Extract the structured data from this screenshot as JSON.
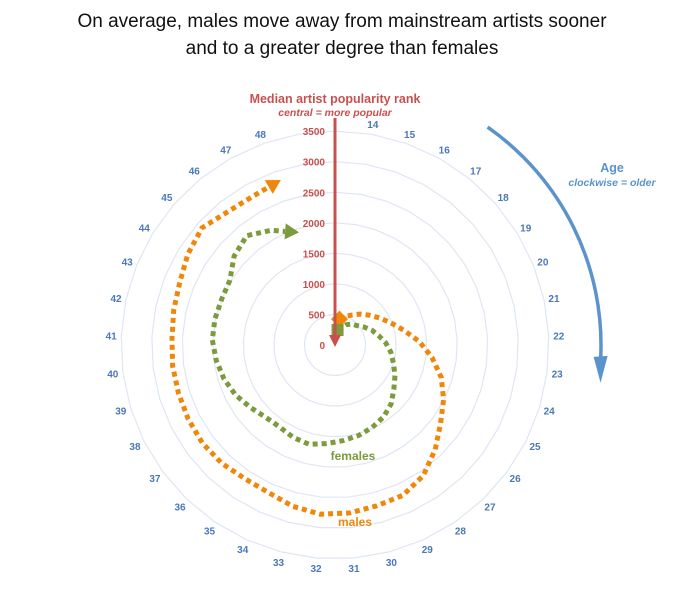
{
  "chart_data": {
    "type": "polar-line",
    "title_lines": [
      "On average, males move away from mainstream artists sooner",
      "and to a greater degree than females"
    ],
    "radial_axis": {
      "label": "Median artist popularity rank",
      "sublabel": "central = more popular",
      "ticks": [
        0,
        500,
        1000,
        1500,
        2000,
        2500,
        3000,
        3500
      ],
      "range": [
        0,
        3500
      ]
    },
    "angular_axis": {
      "label": "Age",
      "sublabel": "clockwise = older",
      "ticks": [
        14,
        15,
        16,
        17,
        18,
        19,
        20,
        21,
        22,
        23,
        24,
        25,
        26,
        27,
        28,
        29,
        30,
        31,
        32,
        33,
        34,
        35,
        36,
        37,
        38,
        39,
        40,
        41,
        42,
        43,
        44,
        45,
        46,
        47,
        48
      ]
    },
    "ages": [
      14,
      15,
      16,
      17,
      18,
      19,
      20,
      21,
      22,
      23,
      24,
      25,
      26,
      27,
      28,
      29,
      30,
      31,
      32,
      33,
      34,
      35,
      36,
      37,
      38,
      39,
      40,
      41,
      42,
      43,
      44,
      45,
      46,
      47,
      48
    ],
    "series": [
      {
        "name": "males",
        "color": "#f0870a",
        "values": [
          430,
          500,
          560,
          650,
          740,
          850,
          980,
          1150,
          1380,
          1600,
          1820,
          1990,
          2150,
          2370,
          2580,
          2700,
          2720,
          2760,
          2780,
          2730,
          2650,
          2640,
          2680,
          2700,
          2690,
          2680,
          2680,
          2670,
          2700,
          2740,
          2830,
          2900,
          2800,
          2780,
          2830
        ]
      },
      {
        "name": "females",
        "color": "#7d9a3c",
        "values": [
          250,
          300,
          380,
          440,
          480,
          560,
          650,
          730,
          830,
          920,
          1000,
          1100,
          1200,
          1330,
          1420,
          1480,
          1530,
          1570,
          1620,
          1680,
          1660,
          1620,
          1640,
          1720,
          1820,
          1900,
          1960,
          2010,
          2010,
          2000,
          2020,
          2200,
          2300,
          2150,
          1960
        ]
      }
    ],
    "colors": {
      "radial_axis": "#c9504e",
      "angular_axis": "#5b93cc",
      "age_labels": "#4a78b8",
      "grid": "#dfe6f3"
    },
    "grid": true
  }
}
